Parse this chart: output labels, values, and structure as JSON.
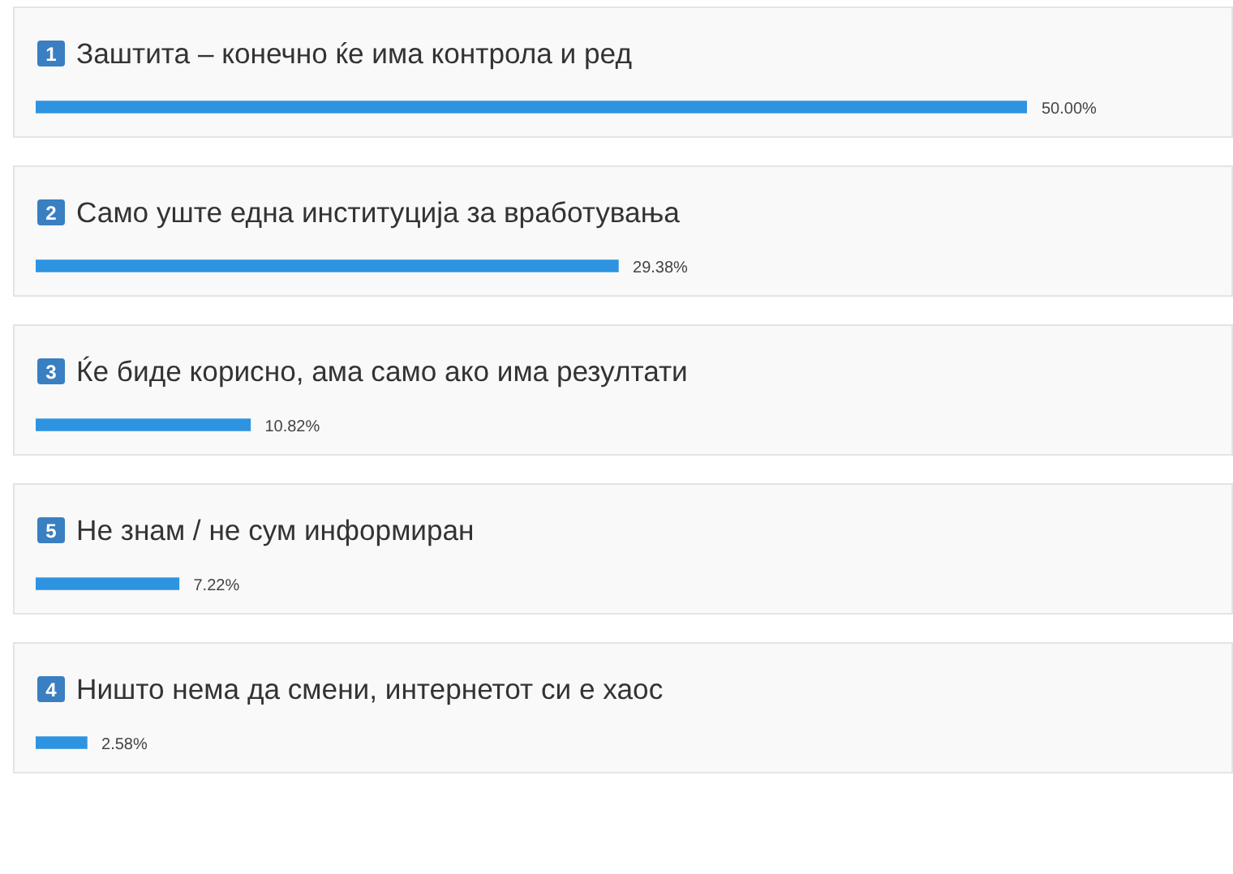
{
  "chart_data": {
    "type": "bar",
    "orientation": "horizontal",
    "categories": [
      "Заштита – конечно ќе има контрола и ред",
      "Само уште една институција за вработувања",
      "Ќе биде корисно, ама само ако има резултати",
      "Не знам / не сум информиран",
      "Ништо нема да смени, интернетот си е хаос"
    ],
    "values": [
      50,
      29.38,
      10.82,
      7.22,
      2.58
    ],
    "color": "#2e93e0",
    "value_labels": [
      "50.00%",
      "29.38%",
      "10.82%",
      "7.22%",
      "2.58%"
    ],
    "annotations": [
      "1",
      "2",
      "3",
      "5",
      "4"
    ]
  }
}
